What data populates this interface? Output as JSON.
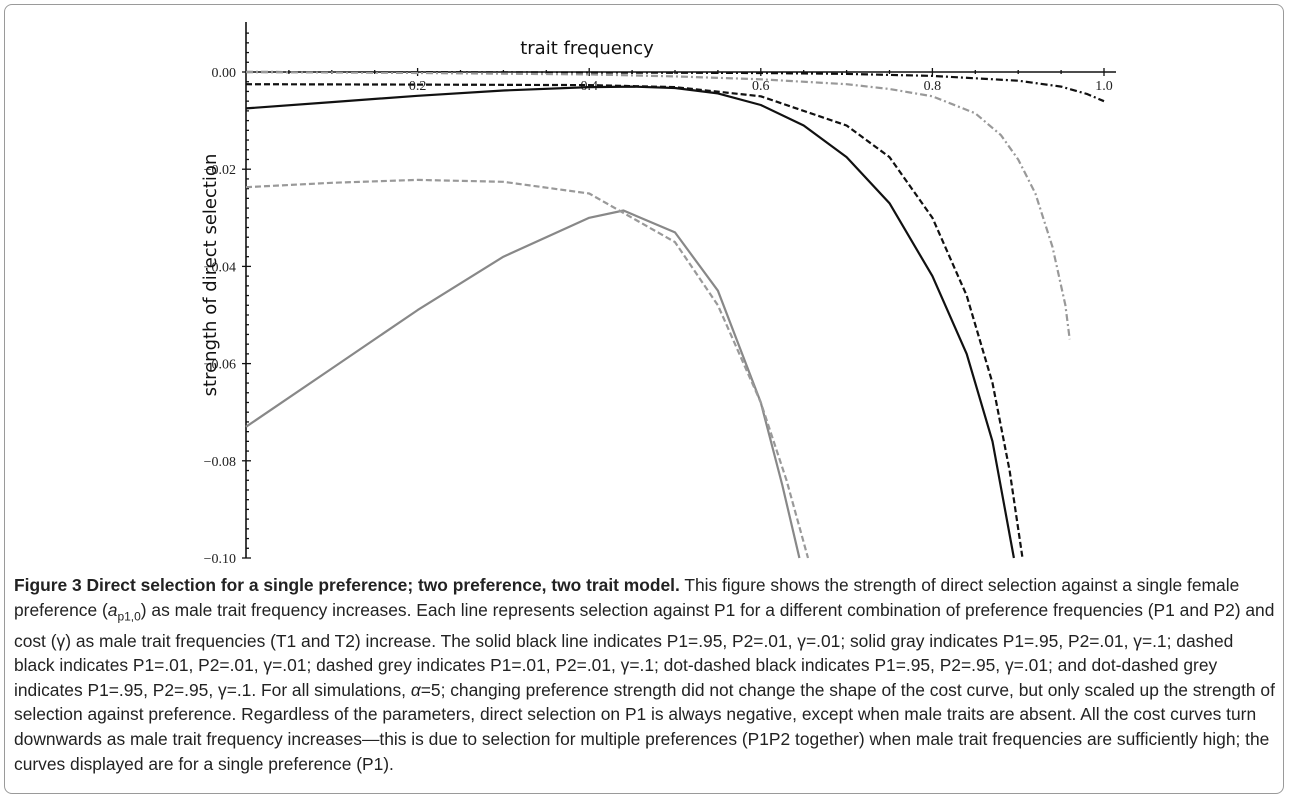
{
  "figure": {
    "caption_title": "Figure 3 Direct selection for a single preference; two preference, two trait model.",
    "caption_part1": " This figure shows the strength of direct selection against a single female preference (",
    "caption_symbol": "a",
    "caption_subscript": "p1,0",
    "caption_part2": ") as male trait frequency increases. Each line represents selection against P1 for a different combination of preference frequencies (P1 and P2) and cost (γ) as male trait frequencies (T1 and T2) increase. The solid black line indicates P1=.95, P2=.01, γ=.01; solid gray indicates P1=.95, P2=.01, γ=.1; dashed black indicates P1=.01, P2=.01, γ=.01; dashed grey indicates P1=.01, P2=.01, γ=.1; dot-dashed black indicates P1=.95, P2=.95, γ=.01; and dot-dashed grey indicates P1=.95, P2=.95, γ=.1. For all simulations, ",
    "caption_alpha": "α",
    "caption_part3": "=5; changing preference strength did not change the shape of the cost curve, but only scaled up the strength of selection against preference. Regardless of the parameters, direct selection on P1 is always negative, except when male traits are absent. All the cost curves turn downwards as male trait frequency increases—this is due to selection for multiple preferences (P1P2 together) when male trait frequencies are sufficiently high; the curves displayed are for a single preference (P1)."
  },
  "chart_data": {
    "type": "line",
    "xlabel": "trait frequency",
    "ylabel": "strength of direct selection",
    "xlim": [
      0,
      1.0
    ],
    "ylim": [
      -0.1,
      0.0
    ],
    "x_axis_position": "top (at y = 0)",
    "x_ticks": [
      "0.2",
      "0.4",
      "0.6",
      "0.8",
      "1.0"
    ],
    "y_ticks": [
      "0.00",
      "−0.02",
      "−0.04",
      "−0.06",
      "−0.08",
      "−0.10"
    ],
    "grid": false,
    "series": [
      {
        "style": "solid",
        "color": "#111111",
        "x": [
          0.0,
          0.1,
          0.2,
          0.3,
          0.4,
          0.45,
          0.5,
          0.55,
          0.6,
          0.65,
          0.7,
          0.75,
          0.8,
          0.84,
          0.87,
          0.895
        ],
        "y": [
          -0.0075,
          -0.0062,
          -0.0049,
          -0.0038,
          -0.0031,
          -0.003,
          -0.0033,
          -0.0044,
          -0.0068,
          -0.011,
          -0.0175,
          -0.027,
          -0.042,
          -0.058,
          -0.076,
          -0.1
        ]
      },
      {
        "style": "solid",
        "color": "#888888",
        "x": [
          0.0,
          0.1,
          0.2,
          0.3,
          0.4,
          0.44,
          0.5,
          0.55,
          0.6,
          0.625,
          0.645
        ],
        "y": [
          -0.073,
          -0.061,
          -0.049,
          -0.038,
          -0.03,
          -0.0285,
          -0.033,
          -0.045,
          -0.068,
          -0.085,
          -0.1
        ]
      },
      {
        "style": "dashed",
        "color": "#111111",
        "x": [
          0.0,
          0.2,
          0.4,
          0.5,
          0.6,
          0.7,
          0.75,
          0.8,
          0.84,
          0.87,
          0.89,
          0.905
        ],
        "y": [
          -0.0025,
          -0.0026,
          -0.0027,
          -0.0031,
          -0.005,
          -0.011,
          -0.0175,
          -0.03,
          -0.046,
          -0.064,
          -0.082,
          -0.1
        ]
      },
      {
        "style": "dashed",
        "color": "#999999",
        "x": [
          0.0,
          0.1,
          0.2,
          0.3,
          0.4,
          0.5,
          0.55,
          0.6,
          0.63,
          0.655
        ],
        "y": [
          -0.0237,
          -0.0228,
          -0.0222,
          -0.0226,
          -0.025,
          -0.035,
          -0.048,
          -0.068,
          -0.084,
          -0.1
        ]
      },
      {
        "style": "dot-dashed",
        "color": "#111111",
        "x": [
          0.0,
          0.2,
          0.4,
          0.6,
          0.7,
          0.8,
          0.9,
          0.95,
          0.98,
          1.0
        ],
        "y": [
          0.0,
          -5e-05,
          -0.0001,
          -0.0002,
          -0.0004,
          -0.0008,
          -0.0018,
          -0.003,
          -0.0045,
          -0.006
        ]
      },
      {
        "style": "dot-dashed",
        "color": "#999999",
        "x": [
          0.0,
          0.2,
          0.4,
          0.5,
          0.6,
          0.7,
          0.75,
          0.8,
          0.85,
          0.88,
          0.9,
          0.92,
          0.94,
          0.955,
          0.96
        ],
        "y": [
          0.0,
          -0.0002,
          -0.0005,
          -0.0009,
          -0.0015,
          -0.0025,
          -0.0035,
          -0.005,
          -0.0085,
          -0.013,
          -0.018,
          -0.025,
          -0.036,
          -0.048,
          -0.055
        ]
      }
    ]
  }
}
